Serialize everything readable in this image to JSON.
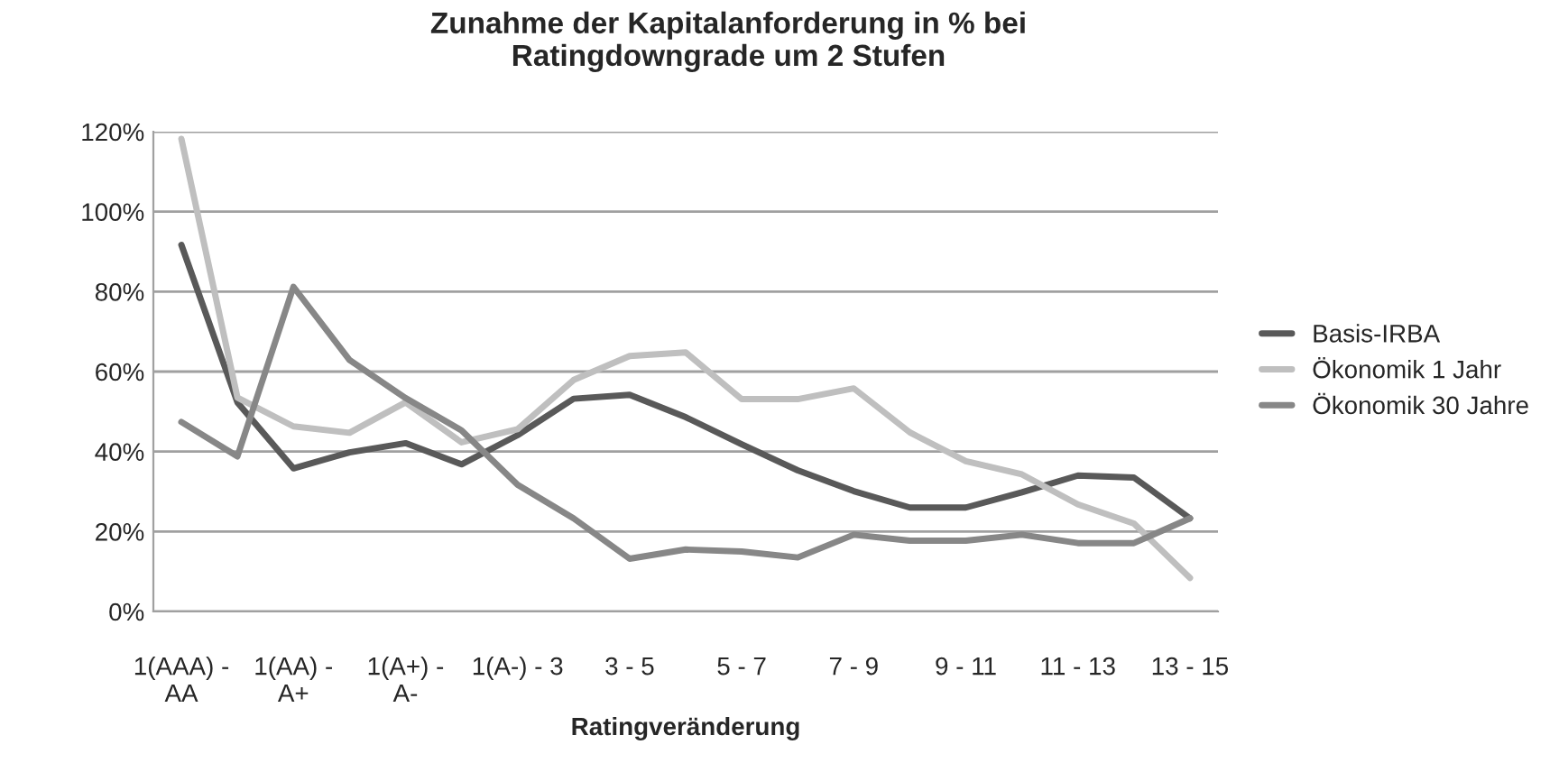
{
  "chart_data": {
    "type": "line",
    "title": "Zunahme der Kapitalanforderung in % bei\nRatingdowngrade um 2 Stufen",
    "xlabel": "Ratingveränderung",
    "categories": [
      "1(AAA) -\nAA",
      null,
      "1(AA) -\nA+",
      null,
      "1(A+) -\nA-",
      null,
      "1(A-) - 3",
      null,
      "3 - 5",
      null,
      "5 - 7",
      null,
      "7 - 9",
      null,
      "9 - 11",
      null,
      "11 - 13",
      null,
      "13 - 15"
    ],
    "series": [
      {
        "name": "Basis-IRBA",
        "color": "#595959",
        "values": [
          91.7,
          52.3,
          35.8,
          39.8,
          42.1,
          36.8,
          44.1,
          53.2,
          54.2,
          48.6,
          41.8,
          35.3,
          30.1,
          26.0,
          26.0,
          29.8,
          34.0,
          33.5,
          23.3
        ]
      },
      {
        "name": "Ökonomik 1 Jahr",
        "color": "#bfbfbf",
        "values": [
          118.2,
          53.5,
          46.3,
          44.7,
          52.3,
          42.3,
          45.6,
          57.9,
          63.9,
          64.8,
          53.1,
          53.1,
          55.8,
          44.8,
          37.6,
          34.3,
          26.8,
          22.0,
          8.4
        ]
      },
      {
        "name": "Ökonomik 30 Jahre",
        "color": "#878787",
        "values": [
          47.4,
          38.8,
          81.2,
          62.9,
          53.4,
          45.3,
          31.7,
          23.3,
          13.2,
          15.5,
          15.0,
          13.5,
          19.2,
          17.7,
          17.7,
          19.2,
          17.1,
          17.1,
          23.3
        ]
      }
    ],
    "ylim": [
      0,
      120
    ],
    "yticks": [
      {
        "value": 0,
        "label": "0%"
      },
      {
        "value": 20,
        "label": "20%"
      },
      {
        "value": 40,
        "label": "40%"
      },
      {
        "value": 60,
        "label": "60%"
      },
      {
        "value": 80,
        "label": "80%"
      },
      {
        "value": 100,
        "label": "100%"
      },
      {
        "value": 120,
        "label": "120%"
      }
    ],
    "grid": "y",
    "legend": "right",
    "marker": "none",
    "line_style": "solid"
  }
}
